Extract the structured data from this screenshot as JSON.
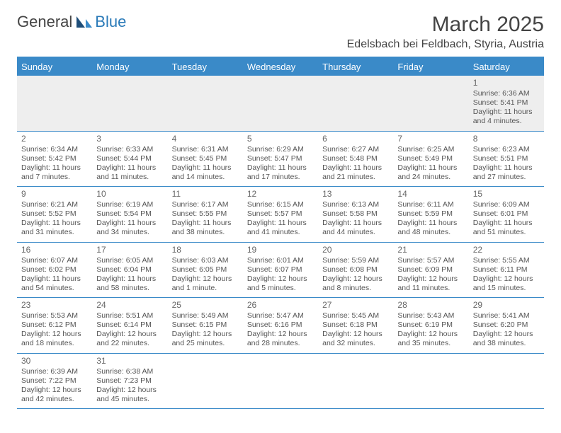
{
  "logo": {
    "part1": "General",
    "part2": "Blue"
  },
  "title": {
    "monthyear": "March 2025",
    "location": "Edelsbach bei Feldbach, Styria, Austria"
  },
  "colors": {
    "accent": "#3a8ac8",
    "header_text": "#ffffff",
    "body_text": "#555555",
    "firstrow_bg": "#eeeeee"
  },
  "weekdays": [
    "Sunday",
    "Monday",
    "Tuesday",
    "Wednesday",
    "Thursday",
    "Friday",
    "Saturday"
  ],
  "weeks": [
    [
      null,
      null,
      null,
      null,
      null,
      null,
      {
        "n": "1",
        "sr": "Sunrise: 6:36 AM",
        "ss": "Sunset: 5:41 PM",
        "d1": "Daylight: 11 hours",
        "d2": "and 4 minutes."
      }
    ],
    [
      {
        "n": "2",
        "sr": "Sunrise: 6:34 AM",
        "ss": "Sunset: 5:42 PM",
        "d1": "Daylight: 11 hours",
        "d2": "and 7 minutes."
      },
      {
        "n": "3",
        "sr": "Sunrise: 6:33 AM",
        "ss": "Sunset: 5:44 PM",
        "d1": "Daylight: 11 hours",
        "d2": "and 11 minutes."
      },
      {
        "n": "4",
        "sr": "Sunrise: 6:31 AM",
        "ss": "Sunset: 5:45 PM",
        "d1": "Daylight: 11 hours",
        "d2": "and 14 minutes."
      },
      {
        "n": "5",
        "sr": "Sunrise: 6:29 AM",
        "ss": "Sunset: 5:47 PM",
        "d1": "Daylight: 11 hours",
        "d2": "and 17 minutes."
      },
      {
        "n": "6",
        "sr": "Sunrise: 6:27 AM",
        "ss": "Sunset: 5:48 PM",
        "d1": "Daylight: 11 hours",
        "d2": "and 21 minutes."
      },
      {
        "n": "7",
        "sr": "Sunrise: 6:25 AM",
        "ss": "Sunset: 5:49 PM",
        "d1": "Daylight: 11 hours",
        "d2": "and 24 minutes."
      },
      {
        "n": "8",
        "sr": "Sunrise: 6:23 AM",
        "ss": "Sunset: 5:51 PM",
        "d1": "Daylight: 11 hours",
        "d2": "and 27 minutes."
      }
    ],
    [
      {
        "n": "9",
        "sr": "Sunrise: 6:21 AM",
        "ss": "Sunset: 5:52 PM",
        "d1": "Daylight: 11 hours",
        "d2": "and 31 minutes."
      },
      {
        "n": "10",
        "sr": "Sunrise: 6:19 AM",
        "ss": "Sunset: 5:54 PM",
        "d1": "Daylight: 11 hours",
        "d2": "and 34 minutes."
      },
      {
        "n": "11",
        "sr": "Sunrise: 6:17 AM",
        "ss": "Sunset: 5:55 PM",
        "d1": "Daylight: 11 hours",
        "d2": "and 38 minutes."
      },
      {
        "n": "12",
        "sr": "Sunrise: 6:15 AM",
        "ss": "Sunset: 5:57 PM",
        "d1": "Daylight: 11 hours",
        "d2": "and 41 minutes."
      },
      {
        "n": "13",
        "sr": "Sunrise: 6:13 AM",
        "ss": "Sunset: 5:58 PM",
        "d1": "Daylight: 11 hours",
        "d2": "and 44 minutes."
      },
      {
        "n": "14",
        "sr": "Sunrise: 6:11 AM",
        "ss": "Sunset: 5:59 PM",
        "d1": "Daylight: 11 hours",
        "d2": "and 48 minutes."
      },
      {
        "n": "15",
        "sr": "Sunrise: 6:09 AM",
        "ss": "Sunset: 6:01 PM",
        "d1": "Daylight: 11 hours",
        "d2": "and 51 minutes."
      }
    ],
    [
      {
        "n": "16",
        "sr": "Sunrise: 6:07 AM",
        "ss": "Sunset: 6:02 PM",
        "d1": "Daylight: 11 hours",
        "d2": "and 54 minutes."
      },
      {
        "n": "17",
        "sr": "Sunrise: 6:05 AM",
        "ss": "Sunset: 6:04 PM",
        "d1": "Daylight: 11 hours",
        "d2": "and 58 minutes."
      },
      {
        "n": "18",
        "sr": "Sunrise: 6:03 AM",
        "ss": "Sunset: 6:05 PM",
        "d1": "Daylight: 12 hours",
        "d2": "and 1 minute."
      },
      {
        "n": "19",
        "sr": "Sunrise: 6:01 AM",
        "ss": "Sunset: 6:07 PM",
        "d1": "Daylight: 12 hours",
        "d2": "and 5 minutes."
      },
      {
        "n": "20",
        "sr": "Sunrise: 5:59 AM",
        "ss": "Sunset: 6:08 PM",
        "d1": "Daylight: 12 hours",
        "d2": "and 8 minutes."
      },
      {
        "n": "21",
        "sr": "Sunrise: 5:57 AM",
        "ss": "Sunset: 6:09 PM",
        "d1": "Daylight: 12 hours",
        "d2": "and 11 minutes."
      },
      {
        "n": "22",
        "sr": "Sunrise: 5:55 AM",
        "ss": "Sunset: 6:11 PM",
        "d1": "Daylight: 12 hours",
        "d2": "and 15 minutes."
      }
    ],
    [
      {
        "n": "23",
        "sr": "Sunrise: 5:53 AM",
        "ss": "Sunset: 6:12 PM",
        "d1": "Daylight: 12 hours",
        "d2": "and 18 minutes."
      },
      {
        "n": "24",
        "sr": "Sunrise: 5:51 AM",
        "ss": "Sunset: 6:14 PM",
        "d1": "Daylight: 12 hours",
        "d2": "and 22 minutes."
      },
      {
        "n": "25",
        "sr": "Sunrise: 5:49 AM",
        "ss": "Sunset: 6:15 PM",
        "d1": "Daylight: 12 hours",
        "d2": "and 25 minutes."
      },
      {
        "n": "26",
        "sr": "Sunrise: 5:47 AM",
        "ss": "Sunset: 6:16 PM",
        "d1": "Daylight: 12 hours",
        "d2": "and 28 minutes."
      },
      {
        "n": "27",
        "sr": "Sunrise: 5:45 AM",
        "ss": "Sunset: 6:18 PM",
        "d1": "Daylight: 12 hours",
        "d2": "and 32 minutes."
      },
      {
        "n": "28",
        "sr": "Sunrise: 5:43 AM",
        "ss": "Sunset: 6:19 PM",
        "d1": "Daylight: 12 hours",
        "d2": "and 35 minutes."
      },
      {
        "n": "29",
        "sr": "Sunrise: 5:41 AM",
        "ss": "Sunset: 6:20 PM",
        "d1": "Daylight: 12 hours",
        "d2": "and 38 minutes."
      }
    ],
    [
      {
        "n": "30",
        "sr": "Sunrise: 6:39 AM",
        "ss": "Sunset: 7:22 PM",
        "d1": "Daylight: 12 hours",
        "d2": "and 42 minutes."
      },
      {
        "n": "31",
        "sr": "Sunrise: 6:38 AM",
        "ss": "Sunset: 7:23 PM",
        "d1": "Daylight: 12 hours",
        "d2": "and 45 minutes."
      },
      null,
      null,
      null,
      null,
      null
    ]
  ]
}
